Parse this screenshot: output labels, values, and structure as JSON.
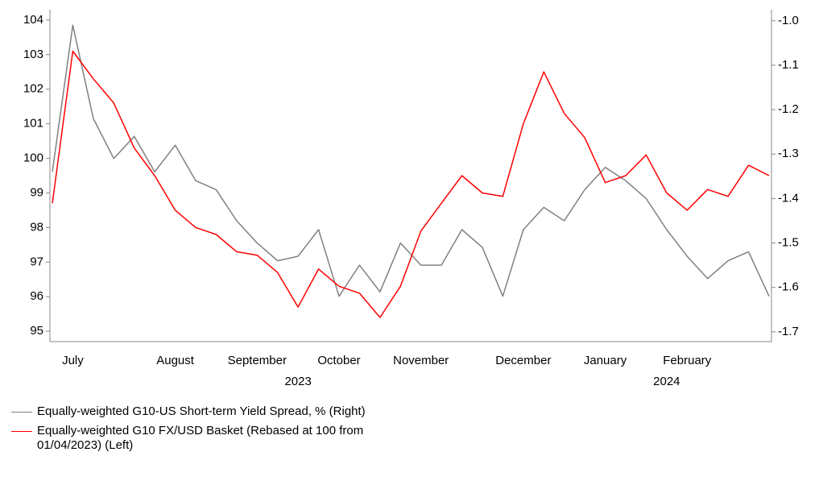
{
  "chart_data": {
    "type": "line",
    "categories": [
      null,
      "July",
      null,
      null,
      null,
      null,
      "August",
      null,
      null,
      null,
      "September",
      null,
      null,
      null,
      "October",
      null,
      null,
      null,
      "November",
      null,
      null,
      null,
      null,
      "December",
      null,
      null,
      null,
      "January",
      null,
      null,
      null,
      "February",
      null,
      null,
      null,
      null
    ],
    "category_years": [
      null,
      null,
      null,
      null,
      null,
      null,
      null,
      null,
      null,
      null,
      null,
      null,
      "2023",
      null,
      null,
      null,
      null,
      null,
      null,
      null,
      null,
      null,
      null,
      null,
      null,
      null,
      null,
      null,
      null,
      null,
      "2024",
      null,
      null,
      null,
      null,
      null
    ],
    "series": [
      {
        "name": "Equally-weighted G10-US Short-term Yield Spread, % (Right)",
        "color": "#808080",
        "axis": "y2",
        "values": [
          -1.34,
          -1.01,
          -1.22,
          -1.31,
          -1.26,
          -1.34,
          -1.28,
          -1.36,
          -1.38,
          -1.45,
          -1.5,
          -1.54,
          -1.53,
          -1.47,
          -1.62,
          -1.55,
          -1.61,
          -1.5,
          -1.55,
          -1.55,
          -1.47,
          -1.51,
          -1.62,
          -1.47,
          -1.42,
          -1.45,
          -1.38,
          -1.33,
          -1.36,
          -1.4,
          -1.47,
          -1.53,
          -1.58,
          -1.54,
          -1.52,
          -1.62
        ]
      },
      {
        "name": "Equally-weighted G10 FX/USD Basket (Rebased at 100 from 01/04/2023) (Left)",
        "color": "#ff0000",
        "values": [
          98.7,
          103.1,
          102.3,
          101.6,
          100.3,
          99.5,
          98.5,
          98.0,
          97.8,
          97.3,
          97.2,
          96.7,
          95.7,
          96.8,
          96.3,
          96.1,
          95.4,
          96.3,
          97.9,
          98.7,
          99.5,
          99.0,
          98.9,
          101.0,
          102.5,
          101.3,
          100.6,
          99.3,
          99.5,
          100.1,
          99.0,
          98.5,
          99.1,
          98.9,
          99.8,
          99.5
        ]
      }
    ],
    "ylim": [
      94.7,
      104.3
    ],
    "yticks": [
      95,
      96,
      97,
      98,
      99,
      100,
      101,
      102,
      103,
      104
    ],
    "y2lim": [
      -1.722,
      -0.975
    ],
    "y2ticks": [
      -1.7,
      -1.6,
      -1.5,
      -1.4,
      -1.3,
      -1.2,
      -1.1,
      {
        "value": -1,
        "label": "-1.0"
      }
    ],
    "grid": false
  }
}
